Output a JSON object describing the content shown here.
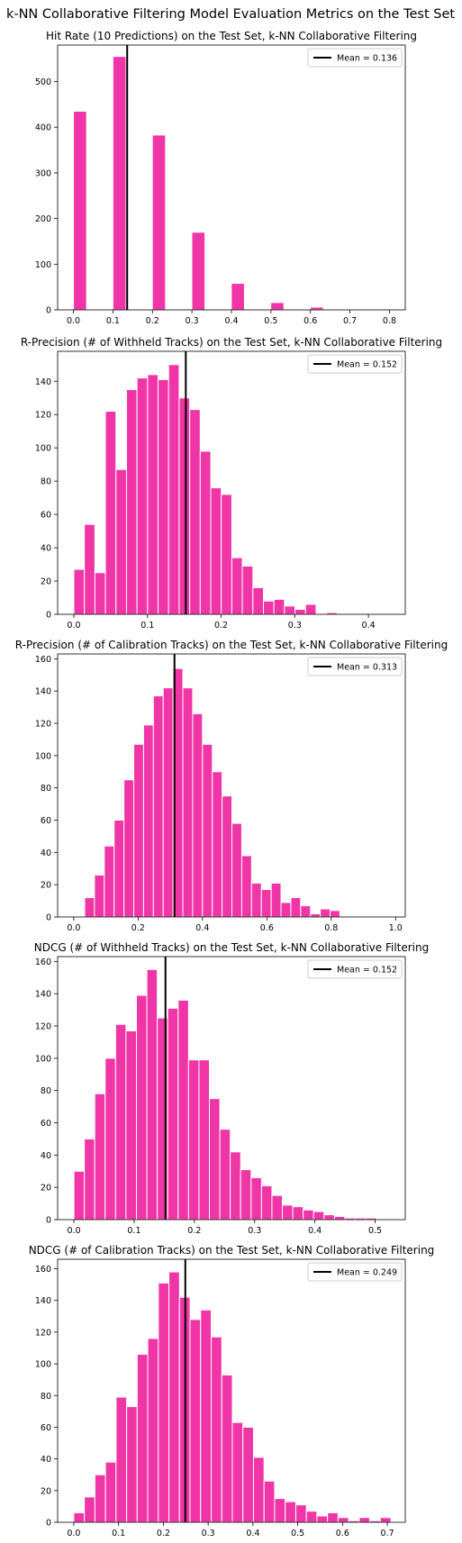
{
  "figure": {
    "suptitle": "k-NN Collaborative Filtering Model Evaluation Metrics on the Test Set",
    "bar_color": "#f035a6",
    "mean_line_color": "#000000"
  },
  "chart_data": [
    {
      "type": "bar",
      "title": "Hit Rate (10 Predictions) on the Test Set, k-NN Collaborative Filtering",
      "xlabel": "",
      "ylabel": "",
      "xlim": [
        -0.04,
        0.84
      ],
      "ylim": [
        0,
        580
      ],
      "xticks": [
        0.0,
        0.1,
        0.2,
        0.3,
        0.4,
        0.5,
        0.6,
        0.7,
        0.8
      ],
      "xtick_labels": [
        "0.0",
        "0.1",
        "0.2",
        "0.3",
        "0.4",
        "0.5",
        "0.6",
        "0.7",
        "0.8"
      ],
      "yticks": [
        0,
        100,
        200,
        300,
        400,
        500
      ],
      "ytick_labels": [
        "0",
        "100",
        "200",
        "300",
        "400",
        "500"
      ],
      "bin_start": 0.0,
      "bin_width": 0.0333,
      "values": [
        435,
        0,
        0,
        555,
        0,
        0,
        383,
        0,
        0,
        170,
        0,
        0,
        58,
        0,
        0,
        16,
        0,
        0,
        6,
        0,
        0,
        0,
        0,
        0
      ],
      "mean": 0.136,
      "legend_label": "Mean = 0.136",
      "legend_loc": "upper right",
      "grid": false
    },
    {
      "type": "bar",
      "title": "R-Precision (# of Withheld Tracks) on the Test Set, k-NN Collaborative Filtering",
      "xlabel": "",
      "ylabel": "",
      "xlim": [
        -0.022,
        0.45
      ],
      "ylim": [
        0,
        158
      ],
      "xticks": [
        0.0,
        0.1,
        0.2,
        0.3,
        0.4
      ],
      "xtick_labels": [
        "0.0",
        "0.1",
        "0.2",
        "0.3",
        "0.4"
      ],
      "yticks": [
        0,
        20,
        40,
        60,
        80,
        100,
        120,
        140
      ],
      "ytick_labels": [
        "0",
        "20",
        "40",
        "60",
        "80",
        "100",
        "120",
        "140"
      ],
      "bin_start": 0.0,
      "bin_width": 0.0143,
      "values": [
        27,
        54,
        25,
        122,
        87,
        135,
        142,
        144,
        141,
        150,
        130,
        123,
        98,
        76,
        72,
        34,
        29,
        16,
        8,
        9,
        5,
        3,
        6,
        0,
        1
      ],
      "mean": 0.152,
      "legend_label": "Mean = 0.152",
      "legend_loc": "upper right",
      "grid": false
    },
    {
      "type": "bar",
      "title": "R-Precision (# of Calibration Tracks) on the Test Set, k-NN Collaborative Filtering",
      "xlabel": "",
      "ylabel": "",
      "xlim": [
        -0.05,
        1.03
      ],
      "ylim": [
        0,
        163
      ],
      "xticks": [
        0.0,
        0.2,
        0.4,
        0.6,
        0.8,
        1.0
      ],
      "xtick_labels": [
        "0.0",
        "0.2",
        "0.4",
        "0.6",
        "0.8",
        "1.0"
      ],
      "yticks": [
        0,
        20,
        40,
        60,
        80,
        100,
        120,
        140,
        160
      ],
      "ytick_labels": [
        "0",
        "20",
        "40",
        "60",
        "80",
        "100",
        "120",
        "140",
        "160"
      ],
      "bin_start": 0.034,
      "bin_width": 0.0305,
      "values": [
        12,
        26,
        44,
        60,
        85,
        107,
        119,
        137,
        142,
        154,
        142,
        126,
        107,
        90,
        75,
        58,
        38,
        21,
        17,
        21,
        9,
        12,
        7,
        2,
        5,
        4
      ],
      "mean": 0.313,
      "legend_label": "Mean = 0.313",
      "legend_loc": "upper right",
      "grid": false
    },
    {
      "type": "bar",
      "title": "NDCG (# of Withheld Tracks) on the Test Set, k-NN Collaborative Filtering",
      "xlabel": "",
      "ylabel": "",
      "xlim": [
        -0.027,
        0.55
      ],
      "ylim": [
        0,
        163
      ],
      "xticks": [
        0.0,
        0.1,
        0.2,
        0.3,
        0.4,
        0.5
      ],
      "xtick_labels": [
        "0.0",
        "0.1",
        "0.2",
        "0.3",
        "0.4",
        "0.5"
      ],
      "yticks": [
        0,
        20,
        40,
        60,
        80,
        100,
        120,
        140,
        160
      ],
      "ytick_labels": [
        "0",
        "20",
        "40",
        "60",
        "80",
        "100",
        "120",
        "140",
        "160"
      ],
      "bin_start": 0.0,
      "bin_width": 0.0173,
      "values": [
        30,
        50,
        78,
        100,
        121,
        117,
        139,
        155,
        125,
        131,
        136,
        99,
        99,
        75,
        56,
        42,
        31,
        26,
        21,
        15,
        9,
        8,
        6,
        5,
        3,
        2,
        1,
        1,
        1
      ],
      "mean": 0.152,
      "legend_label": "Mean = 0.152",
      "legend_loc": "upper right",
      "grid": false
    },
    {
      "type": "bar",
      "title": "NDCG (# of Calibration Tracks) on the Test Set, k-NN Collaborative Filtering",
      "xlabel": "",
      "ylabel": "",
      "xlim": [
        -0.036,
        0.74
      ],
      "ylim": [
        0,
        166
      ],
      "xticks": [
        0.0,
        0.1,
        0.2,
        0.3,
        0.4,
        0.5,
        0.6,
        0.7
      ],
      "xtick_labels": [
        "0.0",
        "0.1",
        "0.2",
        "0.3",
        "0.4",
        "0.5",
        "0.6",
        "0.7"
      ],
      "yticks": [
        0,
        20,
        40,
        60,
        80,
        100,
        120,
        140,
        160
      ],
      "ytick_labels": [
        "0",
        "20",
        "40",
        "60",
        "80",
        "100",
        "120",
        "140",
        "160"
      ],
      "bin_start": 0.0,
      "bin_width": 0.0236,
      "values": [
        6,
        16,
        30,
        38,
        79,
        73,
        106,
        116,
        151,
        158,
        142,
        128,
        134,
        117,
        93,
        63,
        60,
        41,
        26,
        15,
        13,
        11,
        7,
        4,
        6,
        3,
        1,
        3,
        1,
        3
      ],
      "mean": 0.249,
      "legend_label": "Mean = 0.249",
      "legend_loc": "upper right",
      "grid": false
    }
  ]
}
